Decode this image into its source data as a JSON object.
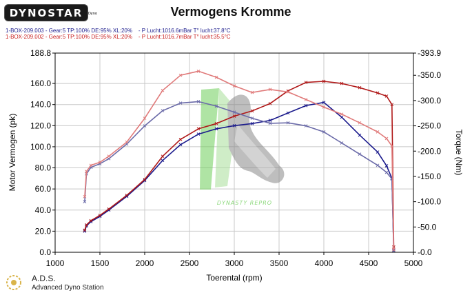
{
  "header": {
    "logo_text": "DYNOSTAR",
    "logo_sub": "Dyno",
    "title": "Vermogens Kromme",
    "runs": [
      "1-BOX-209.003 - Gear:5 TP:100% DE:95% XL:20%    - P Lucht:1016.6mBar T° lucht:37.8°C",
      "1-BOX-209.002 - Gear:5 TP:100% DE:95% XL:20%    - P Lucht:1016.7mBar T° lucht:35.5°C"
    ]
  },
  "footer": {
    "brand": "A.D.S.",
    "subtitle": "Advanced Dyno Station"
  },
  "watermark": {
    "text": "DYNASTY REPRO"
  },
  "colors": {
    "run_blue_power": "#1a1a8c",
    "run_blue_torque": "#6a6aa8",
    "run_red_power": "#b01818",
    "run_red_torque": "#e07a7a",
    "watermark_green": "#6fcf5a",
    "grid": "#c8c8c8"
  },
  "chart_data": {
    "type": "line",
    "title": "Vermogens Kromme",
    "xlabel": "Toerental (rpm)",
    "ylabel": "Motor Vermogen (pk)",
    "y2label": "Torque (Nm)",
    "xlim": [
      1000,
      5000
    ],
    "ylim": [
      0,
      188.8
    ],
    "y2lim": [
      0,
      393.9
    ],
    "x_ticks": [
      "1000",
      "1500",
      "2000",
      "2500",
      "3000",
      "3500",
      "4000",
      "4500",
      "5000"
    ],
    "y_ticks": [
      "0.0",
      "20.0",
      "40.0",
      "60.0",
      "80.0",
      "100.0",
      "120.0",
      "140.0",
      "160.0",
      "188.8"
    ],
    "y2_ticks": [
      "-0.0",
      "-50.0",
      "-100.0",
      "-150.0",
      "-200.0",
      "-250.0",
      "-300.0",
      "-350.0",
      "-393.9"
    ],
    "grid": true,
    "series": [
      {
        "name": "1-BOX-209.003",
        "axis": "power",
        "color": "#1a1a8c",
        "x": [
          1330,
          1350,
          1400,
          1500,
          1600,
          1800,
          2000,
          2200,
          2400,
          2600,
          2800,
          3000,
          3200,
          3400,
          3600,
          3800,
          4000,
          4200,
          4400,
          4600,
          4700,
          4760,
          4780
        ],
        "y": [
          20,
          25,
          29,
          34,
          40,
          53,
          68,
          87,
          102,
          112,
          117,
          120,
          122,
          125,
          132,
          139,
          142,
          128,
          111,
          95,
          82,
          70,
          2
        ]
      },
      {
        "name": "1-BOX-209.002",
        "axis": "power",
        "color": "#b01818",
        "x": [
          1330,
          1350,
          1400,
          1500,
          1600,
          1800,
          2000,
          2200,
          2400,
          2600,
          2800,
          3000,
          3200,
          3400,
          3600,
          3800,
          4000,
          4200,
          4400,
          4600,
          4700,
          4760,
          4780
        ],
        "y": [
          21,
          26,
          30,
          35,
          41,
          54,
          69,
          91,
          107,
          117,
          122,
          129,
          134,
          141,
          153,
          161,
          162,
          160,
          156,
          151,
          148,
          140,
          5
        ]
      },
      {
        "name": "1-BOX-209.003",
        "axis": "torque",
        "color": "#6a6aa8",
        "x": [
          1330,
          1350,
          1400,
          1500,
          1600,
          1800,
          2000,
          2200,
          2400,
          2600,
          2800,
          3000,
          3200,
          3400,
          3600,
          3800,
          4000,
          4200,
          4400,
          4600,
          4700,
          4760,
          4780
        ],
        "y": [
          100,
          155,
          168,
          175,
          185,
          214,
          250,
          280,
          295,
          298,
          289,
          277,
          265,
          255,
          256,
          250,
          238,
          216,
          194,
          172,
          158,
          145,
          2
        ]
      },
      {
        "name": "1-BOX-209.002",
        "axis": "torque",
        "color": "#e07a7a",
        "x": [
          1330,
          1350,
          1400,
          1500,
          1600,
          1800,
          2000,
          2200,
          2400,
          2600,
          2800,
          3000,
          3200,
          3400,
          3600,
          3800,
          4000,
          4200,
          4400,
          4600,
          4700,
          4760,
          4780
        ],
        "y": [
          110,
          160,
          172,
          178,
          190,
          218,
          265,
          320,
          350,
          358,
          346,
          329,
          316,
          322,
          317,
          302,
          287,
          273,
          256,
          238,
          225,
          210,
          5
        ]
      }
    ]
  }
}
